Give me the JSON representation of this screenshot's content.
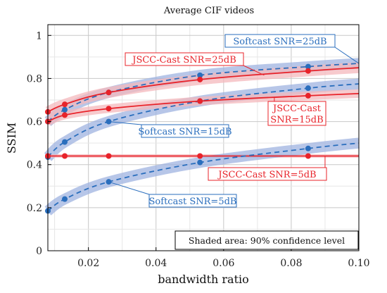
{
  "chart_data": {
    "type": "line",
    "title": "Average CIF videos",
    "xlabel": "bandwidth ratio",
    "ylabel": "SSIM",
    "xlim": [
      0.008,
      0.1
    ],
    "ylim": [
      0,
      1.05
    ],
    "x_ticks": [
      "0.02",
      "0.04",
      "0.06",
      "0.08",
      "0.10"
    ],
    "y_ticks": [
      "0",
      "0.2",
      "0.4",
      "0.6",
      "0.8",
      "1"
    ],
    "grid": true,
    "colors": {
      "softcast": "#2a6ebd",
      "softcast_band": "#9fb3e0",
      "jscc": "#e8232a",
      "jscc_band": "#f4b8bc"
    },
    "series": [
      {
        "name": "Softcast SNR=25dB",
        "family": "softcast",
        "style": "dashed",
        "x": [
          0.008,
          0.013,
          0.026,
          0.053,
          0.085,
          0.1
        ],
        "y": [
          0.6,
          0.655,
          0.735,
          0.815,
          0.855,
          0.87
        ],
        "band": 0.025,
        "markers": [
          [
            0.008,
            0.6
          ],
          [
            0.013,
            0.655
          ],
          [
            0.026,
            0.735
          ],
          [
            0.053,
            0.815
          ],
          [
            0.085,
            0.855
          ]
        ]
      },
      {
        "name": "JSCC-Cast SNR=25dB",
        "family": "jscc",
        "style": "solid",
        "x": [
          0.008,
          0.013,
          0.026,
          0.053,
          0.085,
          0.1
        ],
        "y": [
          0.645,
          0.68,
          0.735,
          0.795,
          0.835,
          0.85
        ],
        "band": 0.025,
        "markers": [
          [
            0.008,
            0.645
          ],
          [
            0.013,
            0.68
          ],
          [
            0.026,
            0.735
          ],
          [
            0.053,
            0.795
          ],
          [
            0.085,
            0.835
          ]
        ]
      },
      {
        "name": "Softcast SNR=15dB",
        "family": "softcast",
        "style": "dashed",
        "x": [
          0.008,
          0.013,
          0.026,
          0.053,
          0.085,
          0.1
        ],
        "y": [
          0.435,
          0.505,
          0.6,
          0.695,
          0.755,
          0.775
        ],
        "band": 0.025,
        "markers": [
          [
            0.008,
            0.435
          ],
          [
            0.013,
            0.505
          ],
          [
            0.026,
            0.6
          ],
          [
            0.053,
            0.695
          ],
          [
            0.085,
            0.755
          ]
        ]
      },
      {
        "name": "JSCC-Cast SNR=15dB",
        "family": "jscc",
        "style": "solid",
        "x": [
          0.008,
          0.013,
          0.026,
          0.053,
          0.085,
          0.1
        ],
        "y": [
          0.6,
          0.63,
          0.66,
          0.695,
          0.72,
          0.73
        ],
        "band": 0.02,
        "markers": [
          [
            0.008,
            0.6
          ],
          [
            0.013,
            0.63
          ],
          [
            0.026,
            0.66
          ],
          [
            0.053,
            0.695
          ],
          [
            0.085,
            0.72
          ]
        ]
      },
      {
        "name": "JSCC-Cast SNR=5dB",
        "family": "jscc",
        "style": "solid",
        "x": [
          0.008,
          0.013,
          0.026,
          0.053,
          0.085,
          0.1
        ],
        "y": [
          0.44,
          0.44,
          0.44,
          0.44,
          0.44,
          0.44
        ],
        "band": 0.008,
        "markers": [
          [
            0.008,
            0.44
          ],
          [
            0.013,
            0.44
          ],
          [
            0.026,
            0.44
          ],
          [
            0.053,
            0.44
          ],
          [
            0.085,
            0.44
          ]
        ]
      },
      {
        "name": "Softcast SNR=5dB",
        "family": "softcast",
        "style": "dashed",
        "x": [
          0.008,
          0.013,
          0.026,
          0.053,
          0.085,
          0.1
        ],
        "y": [
          0.185,
          0.24,
          0.32,
          0.41,
          0.475,
          0.5
        ],
        "band": 0.025,
        "markers": [
          [
            0.008,
            0.185
          ],
          [
            0.013,
            0.24
          ],
          [
            0.026,
            0.32
          ],
          [
            0.053,
            0.41
          ],
          [
            0.085,
            0.475
          ]
        ]
      }
    ],
    "annotations": [
      {
        "text": "Softcast SNR=25dB",
        "family": "softcast",
        "point_to": [
          0.1,
          0.87
        ]
      },
      {
        "text": "JSCC-Cast SNR=25dB",
        "family": "jscc",
        "point_to": [
          0.072,
          0.815
        ]
      },
      {
        "text": "JSCC-Cast",
        "text2": "SNR=15dB",
        "family": "jscc",
        "point_to": [
          0.075,
          0.71
        ]
      },
      {
        "text": "Softcast SNR=15dB",
        "family": "softcast",
        "point_to": [
          0.026,
          0.6
        ]
      },
      {
        "text": "JSCC-Cast SNR=5dB",
        "family": "jscc",
        "point_to": [
          0.09,
          0.44
        ]
      },
      {
        "text": "Softcast SNR=5dB",
        "family": "softcast",
        "point_to": [
          0.026,
          0.32
        ]
      }
    ],
    "note": "Shaded area: 90% confidence level"
  }
}
